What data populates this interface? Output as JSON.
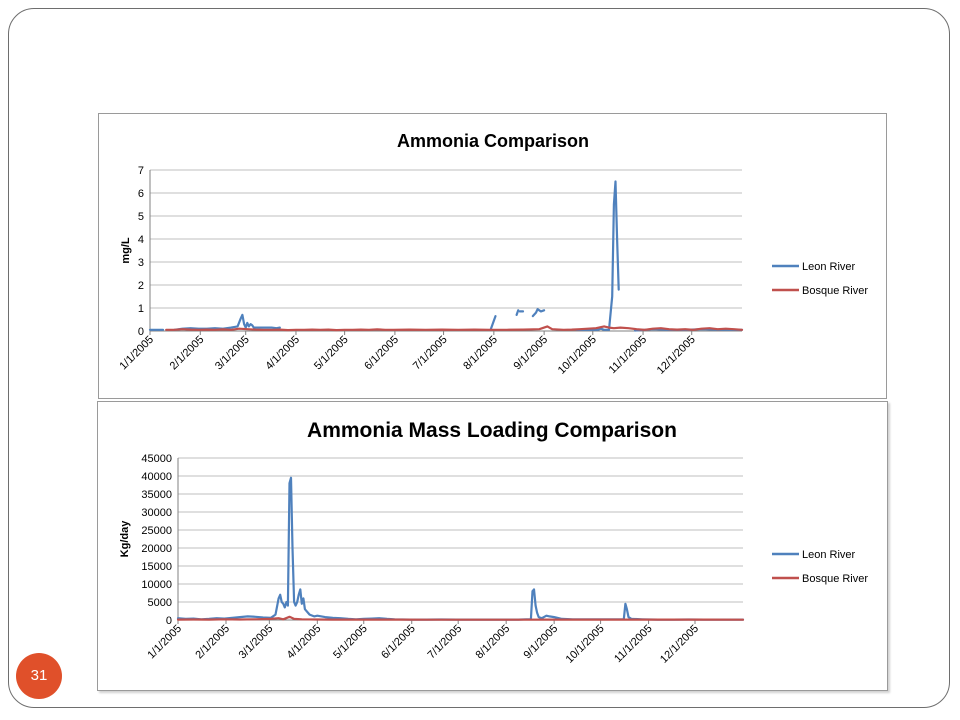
{
  "page_number": "31",
  "chart_data": [
    {
      "type": "line",
      "title": "Ammonia Comparison",
      "xlabel": "",
      "ylabel": "mg/L",
      "ylim": [
        0,
        7
      ],
      "yticks": [
        0,
        1,
        2,
        3,
        4,
        5,
        6,
        7
      ],
      "xlim": [
        0,
        365
      ],
      "xtick_positions": [
        0,
        31,
        59,
        90,
        120,
        151,
        181,
        212,
        243,
        273,
        304,
        334
      ],
      "xtick_labels": [
        "1/1/2005",
        "2/1/2005",
        "3/1/2005",
        "4/1/2005",
        "5/1/2005",
        "6/1/2005",
        "7/1/2005",
        "8/1/2005",
        "9/1/2005",
        "10/1/2005",
        "11/1/2005",
        "12/1/2005"
      ],
      "grid": true,
      "legend": "right",
      "series": [
        {
          "name": "Leon River",
          "color": "#4f81bd",
          "segments": [
            [
              [
                0,
                0.05
              ],
              [
                8,
                0.05
              ]
            ],
            [
              [
                15,
                0.05
              ],
              [
                20,
                0.1
              ],
              [
                25,
                0.12
              ],
              [
                30,
                0.1
              ],
              [
                35,
                0.1
              ],
              [
                40,
                0.12
              ],
              [
                45,
                0.1
              ],
              [
                50,
                0.15
              ],
              [
                54,
                0.2
              ],
              [
                56,
                0.55
              ],
              [
                57,
                0.7
              ],
              [
                58,
                0.3
              ],
              [
                59,
                0.15
              ],
              [
                60,
                0.35
              ],
              [
                61,
                0.2
              ],
              [
                62,
                0.3
              ],
              [
                63,
                0.25
              ],
              [
                64,
                0.15
              ],
              [
                66,
                0.15
              ],
              [
                70,
                0.15
              ],
              [
                75,
                0.15
              ],
              [
                78,
                0.12
              ],
              [
                80,
                0.15
              ]
            ],
            [
              [
                210,
                0.05
              ],
              [
                213,
                0.65
              ]
            ],
            [
              [
                226,
                0.7
              ],
              [
                227,
                0.9
              ]
            ],
            [
              [
                228,
                0.85
              ],
              [
                230,
                0.85
              ]
            ],
            [
              [
                236,
                0.65
              ],
              [
                238,
                0.8
              ],
              [
                239,
                0.95
              ],
              [
                241,
                0.85
              ],
              [
                243,
                0.9
              ]
            ],
            [
              [
                263,
                0.05
              ],
              [
                270,
                0.05
              ],
              [
                276,
                0.05
              ],
              [
                278,
                0.1
              ],
              [
                280,
                0.05
              ],
              [
                283,
                0.05
              ],
              [
                285,
                1.5
              ],
              [
                286,
                5.5
              ],
              [
                287,
                6.5
              ],
              [
                288,
                4.0
              ],
              [
                289,
                1.8
              ]
            ],
            [
              [
                299,
                0.02
              ],
              [
                305,
                0.05
              ],
              [
                310,
                0.08
              ],
              [
                320,
                0.05
              ],
              [
                330,
                0.05
              ],
              [
                340,
                0.08
              ],
              [
                350,
                0.06
              ],
              [
                360,
                0.05
              ],
              [
                365,
                0.05
              ]
            ]
          ]
        },
        {
          "name": "Bosque River",
          "color": "#c0504d",
          "segments": [
            [
              [
                10,
                0.05
              ],
              [
                15,
                0.05
              ],
              [
                20,
                0.08
              ],
              [
                25,
                0.06
              ],
              [
                30,
                0.05
              ],
              [
                35,
                0.06
              ],
              [
                40,
                0.05
              ],
              [
                45,
                0.07
              ],
              [
                50,
                0.05
              ],
              [
                55,
                0.1
              ],
              [
                60,
                0.08
              ],
              [
                65,
                0.06
              ],
              [
                70,
                0.05
              ],
              [
                75,
                0.05
              ],
              [
                80,
                0.06
              ],
              [
                85,
                0.04
              ],
              [
                90,
                0.05
              ],
              [
                95,
                0.05
              ],
              [
                100,
                0.06
              ],
              [
                105,
                0.05
              ],
              [
                110,
                0.06
              ],
              [
                115,
                0.04
              ],
              [
                120,
                0.05
              ],
              [
                125,
                0.05
              ],
              [
                130,
                0.06
              ],
              [
                135,
                0.05
              ],
              [
                140,
                0.07
              ],
              [
                145,
                0.05
              ],
              [
                150,
                0.05
              ],
              [
                160,
                0.06
              ],
              [
                170,
                0.05
              ],
              [
                180,
                0.06
              ],
              [
                190,
                0.05
              ],
              [
                200,
                0.06
              ],
              [
                210,
                0.05
              ],
              [
                220,
                0.05
              ],
              [
                230,
                0.06
              ],
              [
                240,
                0.08
              ],
              [
                245,
                0.2
              ],
              [
                248,
                0.08
              ],
              [
                255,
                0.05
              ],
              [
                260,
                0.06
              ],
              [
                265,
                0.08
              ],
              [
                270,
                0.1
              ],
              [
                275,
                0.12
              ],
              [
                280,
                0.2
              ],
              [
                283,
                0.15
              ],
              [
                286,
                0.12
              ],
              [
                290,
                0.15
              ],
              [
                295,
                0.12
              ],
              [
                300,
                0.08
              ],
              [
                305,
                0.05
              ],
              [
                310,
                0.1
              ],
              [
                315,
                0.12
              ],
              [
                320,
                0.08
              ],
              [
                325,
                0.06
              ],
              [
                330,
                0.08
              ],
              [
                335,
                0.05
              ],
              [
                340,
                0.1
              ],
              [
                345,
                0.12
              ],
              [
                350,
                0.08
              ],
              [
                355,
                0.1
              ],
              [
                360,
                0.08
              ],
              [
                365,
                0.05
              ]
            ]
          ]
        }
      ]
    },
    {
      "type": "line",
      "title": "Ammonia Mass Loading Comparison",
      "xlabel": "",
      "ylabel": "Kg/day",
      "ylim": [
        0,
        45000
      ],
      "yticks": [
        0,
        5000,
        10000,
        15000,
        20000,
        25000,
        30000,
        35000,
        40000,
        45000
      ],
      "xlim": [
        0,
        365
      ],
      "xtick_positions": [
        0,
        31,
        59,
        90,
        120,
        151,
        181,
        212,
        243,
        273,
        304,
        334
      ],
      "xtick_labels": [
        "1/1/2005",
        "2/1/2005",
        "3/1/2005",
        "4/1/2005",
        "5/1/2005",
        "6/1/2005",
        "7/1/2005",
        "8/1/2005",
        "9/1/2005",
        "10/1/2005",
        "11/1/2005",
        "12/1/2005"
      ],
      "grid": true,
      "legend": "right",
      "series": [
        {
          "name": "Leon River",
          "color": "#4f81bd",
          "segments": [
            [
              [
                0,
                500
              ],
              [
                5,
                300
              ],
              [
                10,
                400
              ],
              [
                15,
                200
              ],
              [
                20,
                300
              ],
              [
                25,
                500
              ],
              [
                30,
                400
              ],
              [
                35,
                600
              ],
              [
                40,
                800
              ],
              [
                45,
                1000
              ],
              [
                50,
                900
              ],
              [
                55,
                700
              ],
              [
                60,
                600
              ],
              [
                63,
                1500
              ],
              [
                65,
                6000
              ],
              [
                66,
                7000
              ],
              [
                67,
                5000
              ],
              [
                68,
                4500
              ],
              [
                69,
                3500
              ],
              [
                70,
                5000
              ],
              [
                71,
                4000
              ],
              [
                72,
                38000
              ],
              [
                73,
                39500
              ],
              [
                74,
                20000
              ],
              [
                75,
                5000
              ],
              [
                76,
                4000
              ],
              [
                77,
                5000
              ],
              [
                78,
                7000
              ],
              [
                79,
                8500
              ],
              [
                80,
                4500
              ],
              [
                81,
                6000
              ],
              [
                82,
                3000
              ],
              [
                85,
                1500
              ],
              [
                88,
                1000
              ],
              [
                90,
                1200
              ],
              [
                95,
                800
              ],
              [
                100,
                600
              ],
              [
                105,
                500
              ],
              [
                110,
                300
              ],
              [
                115,
                200
              ],
              [
                120,
                300
              ],
              [
                125,
                400
              ],
              [
                130,
                500
              ],
              [
                135,
                300
              ],
              [
                140,
                200
              ],
              [
                150,
                100
              ],
              [
                160,
                100
              ],
              [
                170,
                150
              ],
              [
                180,
                100
              ],
              [
                190,
                100
              ],
              [
                200,
                100
              ],
              [
                210,
                100
              ],
              [
                220,
                100
              ],
              [
                225,
                200
              ],
              [
                228,
                200
              ],
              [
                229,
                8000
              ],
              [
                230,
                8500
              ],
              [
                231,
                4000
              ],
              [
                232,
                2000
              ],
              [
                233,
                800
              ],
              [
                235,
                500
              ],
              [
                238,
                1200
              ],
              [
                240,
                1000
              ],
              [
                243,
                800
              ],
              [
                248,
                300
              ],
              [
                255,
                200
              ],
              [
                265,
                200
              ],
              [
                270,
                200
              ],
              [
                280,
                200
              ],
              [
                288,
                200
              ],
              [
                289,
                4500
              ],
              [
                290,
                3000
              ],
              [
                291,
                800
              ],
              [
                293,
                300
              ],
              [
                300,
                200
              ],
              [
                310,
                100
              ],
              [
                320,
                100
              ],
              [
                330,
                150
              ],
              [
                340,
                100
              ],
              [
                350,
                100
              ],
              [
                365,
                100
              ]
            ]
          ]
        },
        {
          "name": "Bosque River",
          "color": "#c0504d",
          "segments": [
            [
              [
                0,
                100
              ],
              [
                10,
                150
              ],
              [
                20,
                100
              ],
              [
                30,
                200
              ],
              [
                40,
                150
              ],
              [
                50,
                200
              ],
              [
                60,
                300
              ],
              [
                65,
                500
              ],
              [
                68,
                200
              ],
              [
                72,
                900
              ],
              [
                75,
                300
              ],
              [
                80,
                200
              ],
              [
                90,
                150
              ],
              [
                100,
                120
              ],
              [
                120,
                100
              ],
              [
                140,
                100
              ],
              [
                160,
                80
              ],
              [
                180,
                80
              ],
              [
                200,
                80
              ],
              [
                220,
                80
              ],
              [
                240,
                100
              ],
              [
                260,
                100
              ],
              [
                280,
                120
              ],
              [
                300,
                100
              ],
              [
                320,
                100
              ],
              [
                340,
                100
              ],
              [
                365,
                80
              ]
            ]
          ]
        }
      ]
    }
  ]
}
